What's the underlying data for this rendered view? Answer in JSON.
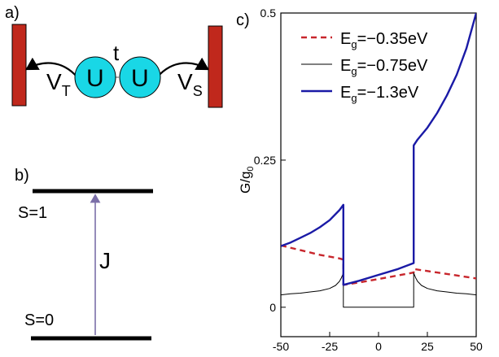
{
  "panel_a": {
    "label": "a)",
    "coupling_left": "V",
    "coupling_left_sub": "T",
    "coupling_right": "V",
    "coupling_right_sub": "S",
    "hopping": "t",
    "site_left": "U",
    "site_right": "U",
    "colors": {
      "lead": "#c0281c",
      "site": "#19d7e6"
    }
  },
  "panel_b": {
    "label": "b)",
    "upper_state": "S=1",
    "lower_state": "S=0",
    "gap": "J",
    "colors": {
      "arrow": "#7b6fa8"
    }
  },
  "chart_data": {
    "panel_label": "c)",
    "type": "line",
    "xlabel": "",
    "ylabel_main": "G/g",
    "ylabel_sub": "0",
    "xlim": [
      -50,
      50
    ],
    "ylim": [
      -0.05,
      0.5
    ],
    "xticks": [
      "-50",
      "-25",
      "0",
      "25",
      "50"
    ],
    "xtick_values": [
      -50,
      -25,
      0,
      25,
      50
    ],
    "yticks": [
      "0",
      "0.25",
      "0.5"
    ],
    "ytick_values": [
      0,
      0.25,
      0.5
    ],
    "legend_position": "top",
    "series": [
      {
        "name": "E_g=−0.35eV",
        "label_main": "E",
        "label_sub": "g",
        "label_rest": "=−0.35eV",
        "color": "#c8262c",
        "dash": "7,5",
        "width": 2.4,
        "x": [
          -50,
          -40,
          -30,
          -20,
          -18,
          -18,
          -10,
          0,
          10,
          18,
          18,
          20,
          30,
          40,
          50
        ],
        "y": [
          0.105,
          0.097,
          0.089,
          0.083,
          0.081,
          0.038,
          0.042,
          0.048,
          0.054,
          0.059,
          0.065,
          0.064,
          0.059,
          0.054,
          0.049
        ]
      },
      {
        "name": "E_g=−0.75eV",
        "label_main": "E",
        "label_sub": "g",
        "label_rest": "=−0.75eV",
        "color": "#000000",
        "dash": "",
        "width": 1,
        "x": [
          -50,
          -45,
          -40,
          -35,
          -30,
          -25,
          -22,
          -20,
          -19,
          -18,
          -18,
          -10,
          0,
          10,
          18,
          18,
          19,
          20,
          22,
          25,
          30,
          35,
          40,
          45,
          50
        ],
        "y": [
          0.021,
          0.023,
          0.024,
          0.026,
          0.028,
          0.032,
          0.037,
          0.044,
          0.05,
          0.058,
          0.0,
          0.0,
          0.0,
          0.0,
          0.0,
          0.058,
          0.05,
          0.044,
          0.037,
          0.032,
          0.028,
          0.026,
          0.024,
          0.023,
          0.021
        ]
      },
      {
        "name": "E_g=−1.3eV",
        "label_main": "E",
        "label_sub": "g",
        "label_rest": "=−1.3eV",
        "color": "#1a1aa6",
        "dash": "",
        "width": 2.4,
        "x": [
          -50,
          -45,
          -40,
          -35,
          -30,
          -25,
          -20,
          -18,
          -18,
          -10,
          0,
          10,
          18,
          18,
          20,
          25,
          30,
          35,
          40,
          45,
          50
        ],
        "y": [
          0.104,
          0.11,
          0.118,
          0.126,
          0.136,
          0.148,
          0.165,
          0.174,
          0.038,
          0.045,
          0.055,
          0.065,
          0.075,
          0.275,
          0.285,
          0.305,
          0.33,
          0.36,
          0.395,
          0.44,
          0.5
        ]
      }
    ]
  }
}
